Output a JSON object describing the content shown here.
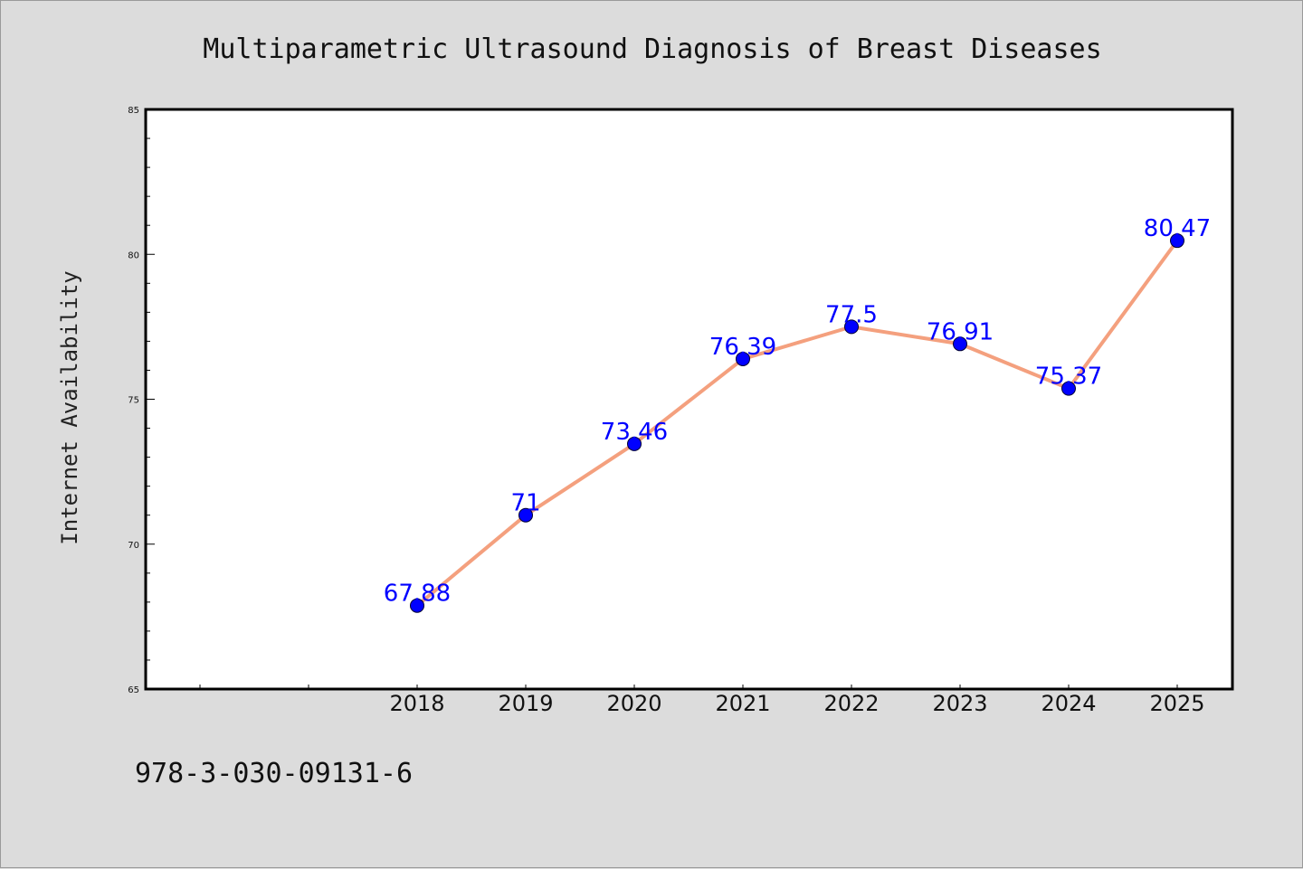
{
  "chart_data": {
    "type": "line",
    "title": "Multiparametric Ultrasound Diagnosis of Breast Diseases",
    "xlabel": "",
    "ylabel": "Internet Availability",
    "categories": [
      "2018",
      "2019",
      "2020",
      "2021",
      "2022",
      "2023",
      "2024",
      "2025"
    ],
    "series": [
      {
        "values": [
          67.88,
          71,
          73.46,
          76.39,
          77.5,
          76.91,
          75.37,
          80.47
        ],
        "data_labels": [
          "67.88",
          "71",
          "73.46",
          "76.39",
          "77.5",
          "76.91",
          "75.37",
          "80.47"
        ]
      }
    ],
    "ylim": [
      65,
      85
    ],
    "yticks": [
      "65",
      "70",
      "75",
      "80",
      "85"
    ],
    "grid": false,
    "legend": "none",
    "colors": {
      "line": "#f4a07e",
      "marker": "#0000ff",
      "marker_edge": "#000033",
      "data_label": "#0000ff",
      "plot_bg": "#ffffff",
      "page_bg": "#dcdcdc"
    }
  },
  "footer_text": "978-3-030-09131-6"
}
